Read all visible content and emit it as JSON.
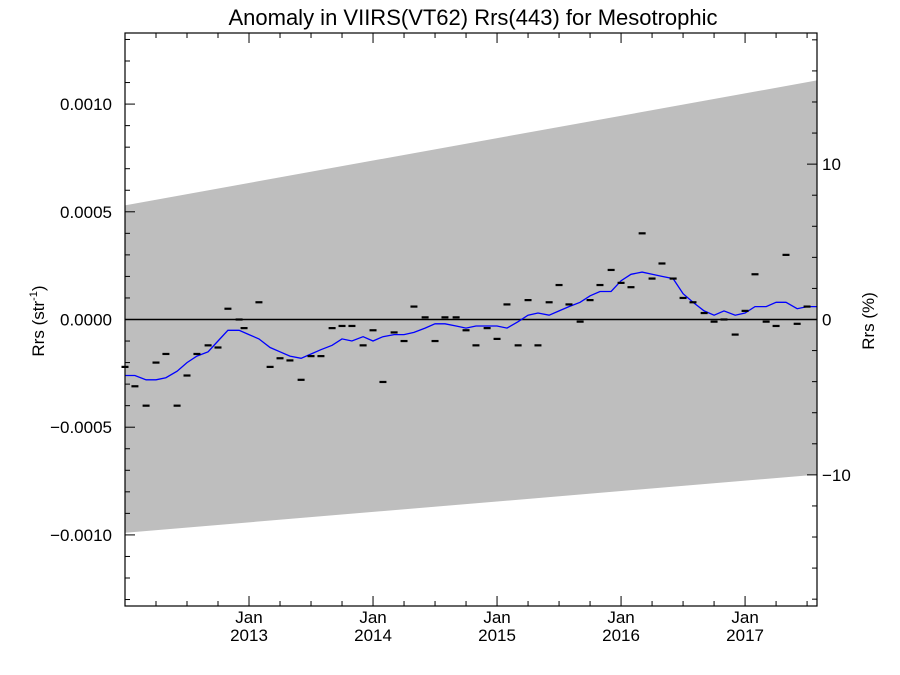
{
  "chart_data": {
    "type": "scatter",
    "title": "Anomaly in VIIRS(VT62) Rrs(443) for Mesotrophic",
    "ylabel": "Rrs (str",
    "ylabel_sup": "-1",
    "ylabel_close": ")",
    "y2label": "Rrs (%)",
    "xlim": [
      2012.0,
      2017.58
    ],
    "ylim": [
      -0.00133,
      0.00133
    ],
    "y2lim": [
      -18.44,
      18.44
    ],
    "x_ticks": [
      {
        "value": 2013.0,
        "month": "Jan",
        "year": "2013"
      },
      {
        "value": 2014.0,
        "month": "Jan",
        "year": "2014"
      },
      {
        "value": 2015.0,
        "month": "Jan",
        "year": "2015"
      },
      {
        "value": 2016.0,
        "month": "Jan",
        "year": "2016"
      },
      {
        "value": 2017.0,
        "month": "Jan",
        "year": "2017"
      }
    ],
    "y_ticks": [
      {
        "value": 0.001,
        "label": "0.0010"
      },
      {
        "value": 0.0005,
        "label": "0.0005"
      },
      {
        "value": 0.0,
        "label": "0.0000"
      },
      {
        "value": -0.0005,
        "label": "−0.0005"
      },
      {
        "value": -0.001,
        "label": "−0.0010"
      }
    ],
    "y2_ticks": [
      {
        "value": 10,
        "label": "10"
      },
      {
        "value": 0,
        "label": "0"
      },
      {
        "value": -10,
        "label": "−10"
      }
    ],
    "band": {
      "upper": [
        [
          2012.0,
          0.00053
        ],
        [
          2017.58,
          0.00111
        ]
      ],
      "lower": [
        [
          2012.0,
          -0.00099
        ],
        [
          2017.58,
          -0.00072
        ]
      ],
      "color": "#bebebe"
    },
    "zero_line": true,
    "colors": {
      "band": "#bebebe",
      "smooth": "#0000ff",
      "points": "#000000",
      "zero": "#000000"
    },
    "points": [
      [
        2012.0,
        -0.00022
      ],
      [
        2012.08,
        -0.00031
      ],
      [
        2012.17,
        -0.0004
      ],
      [
        2012.25,
        -0.0002
      ],
      [
        2012.33,
        -0.00016
      ],
      [
        2012.42,
        -0.0004
      ],
      [
        2012.5,
        -0.00026
      ],
      [
        2012.58,
        -0.00016
      ],
      [
        2012.67,
        -0.00012
      ],
      [
        2012.75,
        -0.00013
      ],
      [
        2012.83,
        5e-05
      ],
      [
        2012.92,
        0.0
      ],
      [
        2012.96,
        -4e-05
      ],
      [
        2013.08,
        8e-05
      ],
      [
        2013.17,
        -0.00022
      ],
      [
        2013.25,
        -0.00018
      ],
      [
        2013.33,
        -0.00019
      ],
      [
        2013.42,
        -0.00028
      ],
      [
        2013.5,
        -0.00017
      ],
      [
        2013.58,
        -0.00017
      ],
      [
        2013.67,
        -4e-05
      ],
      [
        2013.75,
        -3e-05
      ],
      [
        2013.83,
        -3e-05
      ],
      [
        2013.92,
        -0.00012
      ],
      [
        2014.0,
        -5e-05
      ],
      [
        2014.08,
        -0.00029
      ],
      [
        2014.17,
        -6e-05
      ],
      [
        2014.25,
        -0.0001
      ],
      [
        2014.33,
        6e-05
      ],
      [
        2014.42,
        1e-05
      ],
      [
        2014.5,
        -0.0001
      ],
      [
        2014.58,
        1e-05
      ],
      [
        2014.67,
        1e-05
      ],
      [
        2014.75,
        -5e-05
      ],
      [
        2014.83,
        -0.00012
      ],
      [
        2014.92,
        -4e-05
      ],
      [
        2015.0,
        -9e-05
      ],
      [
        2015.08,
        7e-05
      ],
      [
        2015.17,
        -0.00012
      ],
      [
        2015.25,
        9e-05
      ],
      [
        2015.33,
        -0.00012
      ],
      [
        2015.42,
        8e-05
      ],
      [
        2015.5,
        0.00016
      ],
      [
        2015.58,
        7e-05
      ],
      [
        2015.67,
        -1e-05
      ],
      [
        2015.75,
        9e-05
      ],
      [
        2015.83,
        0.00016
      ],
      [
        2015.92,
        0.00023
      ],
      [
        2016.0,
        0.00017
      ],
      [
        2016.08,
        0.00015
      ],
      [
        2016.17,
        0.0004
      ],
      [
        2016.25,
        0.00019
      ],
      [
        2016.33,
        0.00026
      ],
      [
        2016.42,
        0.00019
      ],
      [
        2016.5,
        0.0001
      ],
      [
        2016.58,
        8e-05
      ],
      [
        2016.67,
        3e-05
      ],
      [
        2016.75,
        -1e-05
      ],
      [
        2016.83,
        0.0
      ],
      [
        2016.92,
        -7e-05
      ],
      [
        2017.0,
        4e-05
      ],
      [
        2017.08,
        0.00021
      ],
      [
        2017.17,
        -1e-05
      ],
      [
        2017.25,
        -3e-05
      ],
      [
        2017.33,
        0.0003
      ],
      [
        2017.42,
        -2e-05
      ],
      [
        2017.5,
        6e-05
      ]
    ],
    "smooth": [
      [
        2012.0,
        -0.00026
      ],
      [
        2012.08,
        -0.00026
      ],
      [
        2012.17,
        -0.00028
      ],
      [
        2012.25,
        -0.00028
      ],
      [
        2012.33,
        -0.00027
      ],
      [
        2012.42,
        -0.00024
      ],
      [
        2012.5,
        -0.0002
      ],
      [
        2012.58,
        -0.00017
      ],
      [
        2012.67,
        -0.00015
      ],
      [
        2012.75,
        -0.0001
      ],
      [
        2012.83,
        -5e-05
      ],
      [
        2012.92,
        -5e-05
      ],
      [
        2013.0,
        -7e-05
      ],
      [
        2013.08,
        -9e-05
      ],
      [
        2013.17,
        -0.00013
      ],
      [
        2013.25,
        -0.00015
      ],
      [
        2013.33,
        -0.00017
      ],
      [
        2013.42,
        -0.00018
      ],
      [
        2013.5,
        -0.00016
      ],
      [
        2013.58,
        -0.00014
      ],
      [
        2013.67,
        -0.00012
      ],
      [
        2013.75,
        -9e-05
      ],
      [
        2013.83,
        -0.0001
      ],
      [
        2013.92,
        -8e-05
      ],
      [
        2014.0,
        -0.0001
      ],
      [
        2014.08,
        -8e-05
      ],
      [
        2014.17,
        -7e-05
      ],
      [
        2014.25,
        -7e-05
      ],
      [
        2014.33,
        -6e-05
      ],
      [
        2014.42,
        -4e-05
      ],
      [
        2014.5,
        -2e-05
      ],
      [
        2014.58,
        -2e-05
      ],
      [
        2014.67,
        -3e-05
      ],
      [
        2014.75,
        -4e-05
      ],
      [
        2014.83,
        -3e-05
      ],
      [
        2014.92,
        -3e-05
      ],
      [
        2015.0,
        -3e-05
      ],
      [
        2015.08,
        -4e-05
      ],
      [
        2015.17,
        -1e-05
      ],
      [
        2015.25,
        2e-05
      ],
      [
        2015.33,
        3e-05
      ],
      [
        2015.42,
        2e-05
      ],
      [
        2015.5,
        4e-05
      ],
      [
        2015.58,
        6e-05
      ],
      [
        2015.67,
        8e-05
      ],
      [
        2015.75,
        0.00011
      ],
      [
        2015.83,
        0.00013
      ],
      [
        2015.92,
        0.00013
      ],
      [
        2016.0,
        0.00018
      ],
      [
        2016.08,
        0.00021
      ],
      [
        2016.17,
        0.00022
      ],
      [
        2016.25,
        0.00021
      ],
      [
        2016.33,
        0.0002
      ],
      [
        2016.42,
        0.00019
      ],
      [
        2016.5,
        0.00012
      ],
      [
        2016.58,
        8e-05
      ],
      [
        2016.67,
        4e-05
      ],
      [
        2016.75,
        2e-05
      ],
      [
        2016.83,
        4e-05
      ],
      [
        2016.92,
        2e-05
      ],
      [
        2017.0,
        3e-05
      ],
      [
        2017.08,
        6e-05
      ],
      [
        2017.17,
        6e-05
      ],
      [
        2017.25,
        8e-05
      ],
      [
        2017.33,
        8e-05
      ],
      [
        2017.42,
        5e-05
      ],
      [
        2017.5,
        6e-05
      ],
      [
        2017.58,
        6e-05
      ]
    ]
  }
}
